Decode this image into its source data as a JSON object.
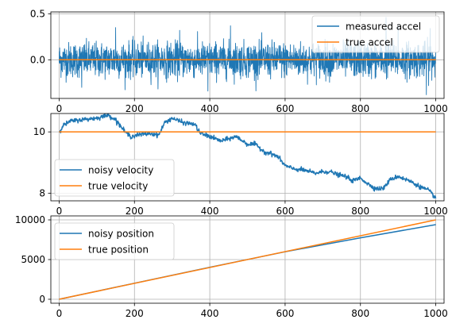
{
  "colors": {
    "series1": "#1f77b4",
    "series2": "#ff7f0e",
    "grid": "#b0b0b0",
    "axis": "#000000"
  },
  "chart_data": [
    {
      "type": "line",
      "xlim": [
        -22,
        1022
      ],
      "ylim": [
        -0.42,
        0.52
      ],
      "xticks": [
        0,
        200,
        400,
        600,
        800,
        1000
      ],
      "yticks": [
        -0.5,
        0.0,
        0.5
      ],
      "ytick_labels": [
        "",
        "0.0",
        "0.5"
      ],
      "grid": true,
      "legend_position": "upper-right",
      "noisy_amplitude": 0.13,
      "series": [
        {
          "name": "measured accel",
          "kind": "noise",
          "x": [
            0,
            1000
          ],
          "y_mean": [
            0.0,
            0.0
          ],
          "peaks": [
            [
              150,
              0.35
            ],
            [
              320,
              0.32
            ],
            [
              455,
              0.37
            ],
            [
              868,
              0.46
            ],
            [
              900,
              0.38
            ],
            [
              985,
              0.34
            ],
            [
              395,
              -0.34
            ],
            [
              975,
              -0.38
            ],
            [
              60,
              -0.3
            ]
          ]
        },
        {
          "name": "true accel",
          "kind": "line",
          "x": [
            0,
            1000
          ],
          "y": [
            0.0,
            0.0
          ]
        }
      ]
    },
    {
      "type": "line",
      "xlim": [
        -22,
        1022
      ],
      "ylim": [
        7.75,
        10.6
      ],
      "xticks": [
        0,
        200,
        400,
        600,
        800,
        1000
      ],
      "yticks": [
        8,
        10
      ],
      "ytick_labels": [
        "8",
        "10"
      ],
      "grid": true,
      "legend_position": "center-left",
      "series": [
        {
          "name": "noisy velocity",
          "kind": "walk",
          "x": [
            0,
            10,
            30,
            60,
            100,
            130,
            150,
            175,
            190,
            210,
            240,
            265,
            280,
            300,
            330,
            360,
            375,
            400,
            430,
            470,
            500,
            520,
            545,
            560,
            580,
            600,
            620,
            650,
            680,
            700,
            720,
            740,
            760,
            780,
            800,
            820,
            840,
            860,
            880,
            900,
            930,
            960,
            980,
            1000
          ],
          "y": [
            10.0,
            10.2,
            10.35,
            10.4,
            10.45,
            10.55,
            10.4,
            10.0,
            9.85,
            9.9,
            9.95,
            9.9,
            10.3,
            10.45,
            10.3,
            10.25,
            9.95,
            9.85,
            9.7,
            9.85,
            9.6,
            9.6,
            9.35,
            9.3,
            9.2,
            8.9,
            8.8,
            8.75,
            8.65,
            8.7,
            8.7,
            8.6,
            8.55,
            8.4,
            8.5,
            8.3,
            8.15,
            8.15,
            8.45,
            8.55,
            8.4,
            8.2,
            8.1,
            7.85
          ]
        },
        {
          "name": "true velocity",
          "kind": "line",
          "x": [
            0,
            1000
          ],
          "y": [
            10.0,
            10.0
          ]
        }
      ]
    },
    {
      "type": "line",
      "xlim": [
        -22,
        1022
      ],
      "ylim": [
        -500,
        10500
      ],
      "xticks": [
        0,
        200,
        400,
        600,
        800,
        1000
      ],
      "xtick_labels": [
        "0",
        "200",
        "400",
        "600",
        "800",
        "1000"
      ],
      "yticks": [
        0,
        5000,
        10000
      ],
      "ytick_labels": [
        "0",
        "5000",
        "10000"
      ],
      "grid": true,
      "legend_position": "upper-left",
      "series": [
        {
          "name": "noisy position",
          "kind": "line",
          "x": [
            0,
            200,
            400,
            600,
            800,
            1000
          ],
          "y": [
            0,
            2020,
            4030,
            5980,
            7740,
            9400
          ]
        },
        {
          "name": "true position",
          "kind": "line",
          "x": [
            0,
            1000
          ],
          "y": [
            0,
            10000
          ]
        }
      ]
    }
  ]
}
